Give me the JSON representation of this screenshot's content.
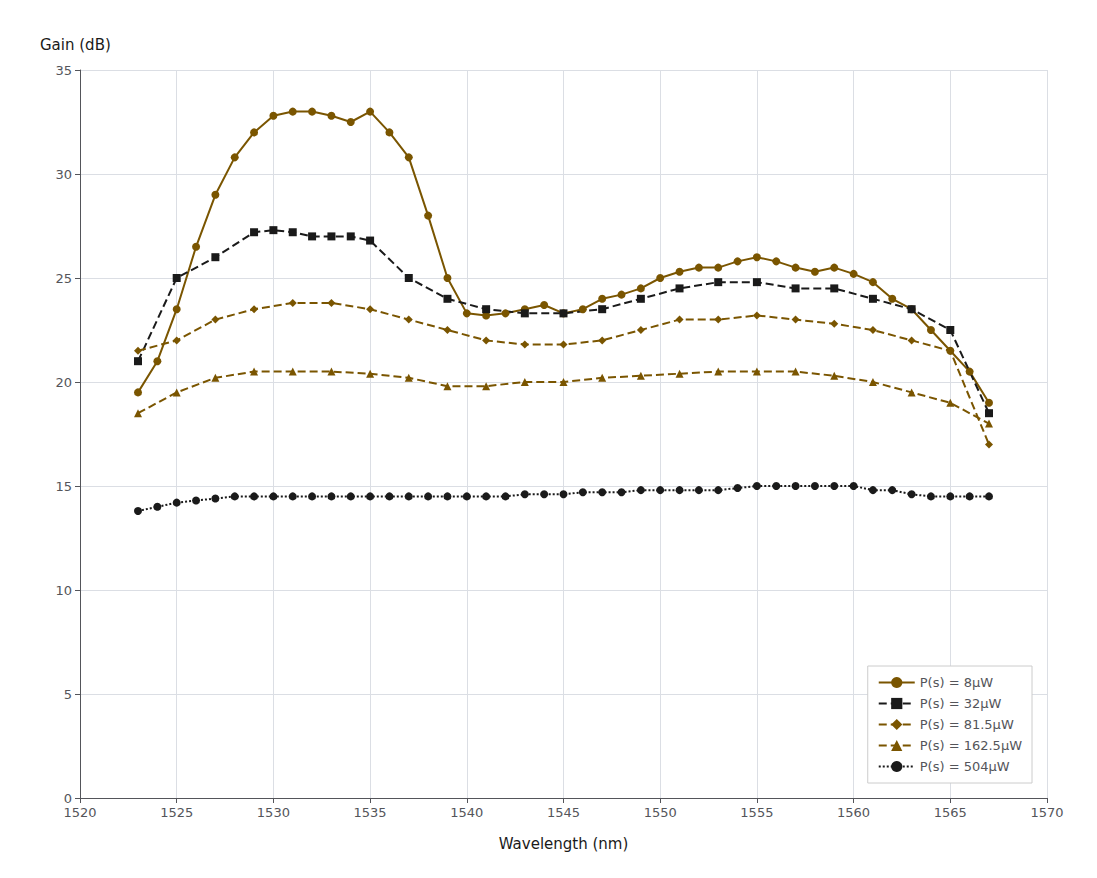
{
  "chart_data": {
    "type": "line",
    "x_label": "Wavelength (nm)",
    "y_label": "Gain (dB)",
    "xlim": [
      1520,
      1570
    ],
    "ylim": [
      0,
      35
    ],
    "xticks": [
      1520,
      1525,
      1530,
      1535,
      1540,
      1545,
      1550,
      1555,
      1560,
      1565,
      1570
    ],
    "yticks": [
      0,
      5,
      10,
      15,
      20,
      25,
      30,
      35
    ],
    "grid": true,
    "legend": "lower right",
    "series": [
      {
        "name": "P(s) = 8μW",
        "color": "#7a5500",
        "marker": "circle",
        "line_style": "solid",
        "x": [
          1523,
          1524,
          1525,
          1526,
          1527,
          1528,
          1529,
          1530,
          1531,
          1532,
          1533,
          1534,
          1535,
          1536,
          1537,
          1538,
          1539,
          1540,
          1541,
          1542,
          1543,
          1544,
          1545,
          1546,
          1547,
          1548,
          1549,
          1550,
          1551,
          1552,
          1553,
          1554,
          1555,
          1556,
          1557,
          1558,
          1559,
          1560,
          1561,
          1562,
          1563,
          1564,
          1565,
          1566,
          1567
        ],
        "values": [
          19.5,
          21.0,
          23.5,
          26.5,
          29.0,
          30.8,
          32.0,
          32.8,
          33.0,
          33.0,
          32.8,
          32.5,
          33.0,
          32.0,
          30.8,
          28.0,
          25.0,
          23.3,
          23.2,
          23.3,
          23.5,
          23.7,
          23.3,
          23.5,
          24.0,
          24.2,
          24.5,
          25.0,
          25.3,
          25.5,
          25.5,
          25.8,
          26.0,
          25.8,
          25.5,
          25.3,
          25.5,
          25.2,
          24.8,
          24.0,
          23.5,
          22.5,
          21.5,
          20.5,
          19.0
        ]
      },
      {
        "name": "P(s) = 32μW",
        "color": "#1a1a1a",
        "marker": "square",
        "line_style": "dashed",
        "x": [
          1523,
          1525,
          1527,
          1529,
          1530,
          1531,
          1532,
          1533,
          1534,
          1535,
          1537,
          1539,
          1541,
          1543,
          1545,
          1547,
          1549,
          1551,
          1553,
          1555,
          1557,
          1559,
          1561,
          1563,
          1565,
          1567
        ],
        "values": [
          21.0,
          25.0,
          26.0,
          27.2,
          27.3,
          27.2,
          27.0,
          27.0,
          27.0,
          26.8,
          25.0,
          24.0,
          23.5,
          23.3,
          23.3,
          23.5,
          24.0,
          24.5,
          24.8,
          24.8,
          24.5,
          24.5,
          24.0,
          23.5,
          22.5,
          18.5
        ]
      },
      {
        "name": "P(s) = 81.5μW",
        "color": "#7a5500",
        "marker": "diamond",
        "line_style": "dashed",
        "x": [
          1523,
          1525,
          1527,
          1529,
          1531,
          1533,
          1535,
          1537,
          1539,
          1541,
          1543,
          1545,
          1547,
          1549,
          1551,
          1553,
          1555,
          1557,
          1559,
          1561,
          1563,
          1565,
          1567
        ],
        "values": [
          21.5,
          22.0,
          23.0,
          23.5,
          23.8,
          23.8,
          23.5,
          23.0,
          22.5,
          22.0,
          21.8,
          21.8,
          22.0,
          22.5,
          23.0,
          23.0,
          23.2,
          23.0,
          22.8,
          22.5,
          22.0,
          21.5,
          17.0
        ]
      },
      {
        "name": "P(s) = 162.5μW",
        "color": "#7a5500",
        "marker": "triangle",
        "line_style": "dashed",
        "x": [
          1523,
          1525,
          1527,
          1529,
          1531,
          1533,
          1535,
          1537,
          1539,
          1541,
          1543,
          1545,
          1547,
          1549,
          1551,
          1553,
          1555,
          1557,
          1559,
          1561,
          1563,
          1565,
          1567
        ],
        "values": [
          18.5,
          19.5,
          20.2,
          20.5,
          20.5,
          20.5,
          20.4,
          20.2,
          19.8,
          19.8,
          20.0,
          20.0,
          20.2,
          20.3,
          20.4,
          20.5,
          20.5,
          20.5,
          20.3,
          20.0,
          19.5,
          19.0,
          18.0
        ]
      },
      {
        "name": "P(s) = 504μW",
        "color": "#1a1a1a",
        "marker": "circle",
        "line_style": "dotted",
        "x": [
          1523,
          1524,
          1525,
          1526,
          1527,
          1528,
          1529,
          1530,
          1531,
          1532,
          1533,
          1534,
          1535,
          1536,
          1537,
          1538,
          1539,
          1540,
          1541,
          1542,
          1543,
          1544,
          1545,
          1546,
          1547,
          1548,
          1549,
          1550,
          1551,
          1552,
          1553,
          1554,
          1555,
          1556,
          1557,
          1558,
          1559,
          1560,
          1561,
          1562,
          1563,
          1564,
          1565,
          1566,
          1567
        ],
        "values": [
          13.8,
          14.0,
          14.2,
          14.3,
          14.4,
          14.5,
          14.5,
          14.5,
          14.5,
          14.5,
          14.5,
          14.5,
          14.5,
          14.5,
          14.5,
          14.5,
          14.5,
          14.5,
          14.5,
          14.5,
          14.6,
          14.6,
          14.6,
          14.7,
          14.7,
          14.7,
          14.8,
          14.8,
          14.8,
          14.8,
          14.8,
          14.9,
          15.0,
          15.0,
          15.0,
          15.0,
          15.0,
          15.0,
          14.8,
          14.8,
          14.6,
          14.5,
          14.5,
          14.5,
          14.5
        ]
      }
    ]
  }
}
